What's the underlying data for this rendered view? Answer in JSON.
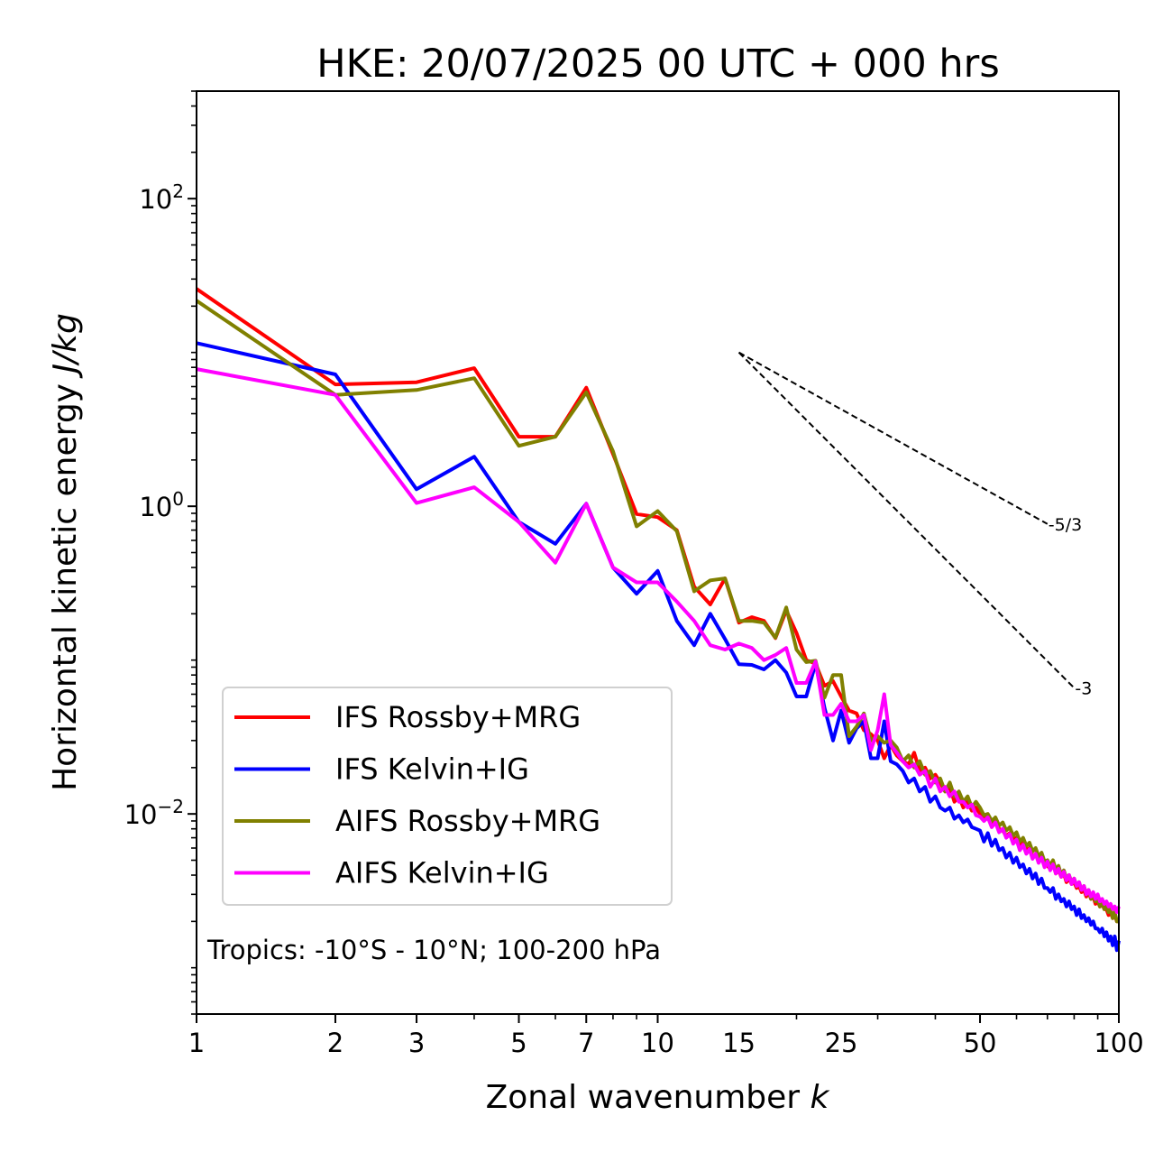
{
  "chart_data": {
    "type": "line",
    "title": "HKE: 20/07/2025 00 UTC + 000 hrs",
    "xlabel": "Zonal wavenumber",
    "xlabel_var": "k",
    "ylabel": "Horizontal kinetic energy",
    "ylabel_units": "J/kg",
    "xscale": "log",
    "yscale": "log",
    "xlim": [
      1,
      100
    ],
    "ylim": [
      0.0005,
      500
    ],
    "grid": false,
    "x_ticks": [
      {
        "value": 1,
        "label": "1"
      },
      {
        "value": 2,
        "label": "2"
      },
      {
        "value": 3,
        "label": "3"
      },
      {
        "value": 5,
        "label": "5"
      },
      {
        "value": 7,
        "label": "7"
      },
      {
        "value": 10,
        "label": "10"
      },
      {
        "value": 15,
        "label": "15"
      },
      {
        "value": 25,
        "label": "25"
      },
      {
        "value": 50,
        "label": "50"
      },
      {
        "value": 100,
        "label": "100"
      }
    ],
    "y_ticks": [
      {
        "value": 100,
        "base": "10",
        "exp": "2"
      },
      {
        "value": 1,
        "base": "10",
        "exp": "0"
      },
      {
        "value": 0.01,
        "base": "10",
        "exp": "−2"
      }
    ],
    "legend_position": "lower-left",
    "annotation": "Tropics: -10°S - 10°N; 100-200 hPa",
    "reference_lines": [
      {
        "slope": -1.6667,
        "label": "-5/3",
        "k_start": 15,
        "k_end": 70,
        "y_start": 10,
        "style": "dashed"
      },
      {
        "slope": -3,
        "label": "-3",
        "k_start": 15,
        "k_end": 80,
        "y_start": 10,
        "style": "dashed"
      }
    ],
    "series": [
      {
        "name": "IFS Rossby+MRG",
        "color": "#ff0000",
        "values": [
          25.9,
          6.2,
          6.4,
          7.9,
          2.83,
          2.83,
          5.9,
          2.19,
          0.89,
          0.85,
          0.7,
          0.3,
          0.23,
          0.34,
          0.175,
          0.19,
          0.18,
          0.139,
          0.21,
          0.15,
          0.1,
          0.095,
          0.068,
          0.073,
          0.058,
          0.047,
          0.045,
          0.035,
          0.033,
          0.03,
          0.023,
          0.028,
          0.024,
          0.022,
          0.021,
          0.025,
          0.019,
          0.02,
          0.017,
          0.018,
          0.016,
          0.014,
          0.015,
          0.012,
          0.013,
          0.011,
          0.012,
          0.0105,
          0.011,
          0.01,
          0.0092,
          0.0098,
          0.0085,
          0.009,
          0.008,
          0.0078,
          0.0072,
          0.0075,
          0.0068,
          0.007,
          0.0062,
          0.0066,
          0.0058,
          0.006,
          0.0052,
          0.0055,
          0.005,
          0.0053,
          0.0047,
          0.0046,
          0.0044,
          0.0048,
          0.0041,
          0.0043,
          0.0039,
          0.0041,
          0.0036,
          0.0038,
          0.0035,
          0.0036,
          0.0033,
          0.0034,
          0.0031,
          0.0032,
          0.0029,
          0.0031,
          0.0028,
          0.0029,
          0.0026,
          0.0027,
          0.0025,
          0.0026,
          0.0024,
          0.0024,
          0.0022,
          0.0023,
          0.0021,
          0.0022,
          0.002,
          0.002
        ]
      },
      {
        "name": "IFS Kelvin+IG",
        "color": "#0000ff",
        "values": [
          11.5,
          7.2,
          1.29,
          2.1,
          0.79,
          0.57,
          1.04,
          0.4,
          0.27,
          0.38,
          0.18,
          0.125,
          0.2,
          0.137,
          0.094,
          0.093,
          0.087,
          0.1,
          0.083,
          0.058,
          0.058,
          0.095,
          0.049,
          0.03,
          0.047,
          0.029,
          0.036,
          0.04,
          0.023,
          0.023,
          0.04,
          0.022,
          0.021,
          0.019,
          0.016,
          0.017,
          0.014,
          0.015,
          0.012,
          0.013,
          0.011,
          0.0105,
          0.011,
          0.0093,
          0.0098,
          0.0088,
          0.0092,
          0.0082,
          0.008,
          0.0078,
          0.0066,
          0.0075,
          0.0062,
          0.0068,
          0.0058,
          0.006,
          0.0052,
          0.0056,
          0.0048,
          0.0052,
          0.0045,
          0.0047,
          0.0041,
          0.0044,
          0.0038,
          0.0041,
          0.0035,
          0.0038,
          0.0033,
          0.0033,
          0.0031,
          0.0033,
          0.0028,
          0.003,
          0.0027,
          0.0028,
          0.0025,
          0.0027,
          0.0024,
          0.0025,
          0.0022,
          0.0024,
          0.0021,
          0.0022,
          0.002,
          0.0021,
          0.0019,
          0.002,
          0.0018,
          0.0018,
          0.0017,
          0.0018,
          0.0016,
          0.0017,
          0.0015,
          0.0016,
          0.0014,
          0.0016,
          0.0013,
          0.0015
        ]
      },
      {
        "name": "AIFS Rossby+MRG",
        "color": "#808000",
        "values": [
          21.7,
          5.3,
          5.7,
          6.8,
          2.47,
          2.83,
          5.5,
          2.28,
          0.74,
          0.93,
          0.69,
          0.28,
          0.33,
          0.34,
          0.18,
          0.18,
          0.175,
          0.14,
          0.22,
          0.117,
          0.097,
          0.099,
          0.057,
          0.08,
          0.08,
          0.032,
          0.037,
          0.045,
          0.03,
          0.032,
          0.029,
          0.03,
          0.027,
          0.022,
          0.024,
          0.02,
          0.022,
          0.018,
          0.019,
          0.016,
          0.017,
          0.014,
          0.016,
          0.013,
          0.014,
          0.012,
          0.013,
          0.011,
          0.012,
          0.011,
          0.0098,
          0.01,
          0.009,
          0.0095,
          0.0084,
          0.0088,
          0.0078,
          0.0082,
          0.0072,
          0.0076,
          0.0066,
          0.007,
          0.0062,
          0.0065,
          0.0057,
          0.006,
          0.0053,
          0.0056,
          0.0049,
          0.005,
          0.0046,
          0.005,
          0.0043,
          0.0046,
          0.004,
          0.0043,
          0.0038,
          0.004,
          0.0036,
          0.0038,
          0.0034,
          0.0036,
          0.0032,
          0.0034,
          0.003,
          0.0032,
          0.0028,
          0.003,
          0.0027,
          0.0028,
          0.0025,
          0.0027,
          0.0024,
          0.0025,
          0.0023,
          0.0024,
          0.0021,
          0.0023,
          0.002,
          0.002
        ]
      },
      {
        "name": "AIFS Kelvin+IG",
        "color": "#ff00ff",
        "values": [
          7.8,
          5.3,
          1.05,
          1.33,
          0.79,
          0.43,
          1.04,
          0.4,
          0.32,
          0.32,
          0.24,
          0.18,
          0.125,
          0.117,
          0.128,
          0.12,
          0.1,
          0.108,
          0.12,
          0.071,
          0.071,
          0.098,
          0.044,
          0.044,
          0.052,
          0.04,
          0.04,
          0.044,
          0.026,
          0.035,
          0.06,
          0.028,
          0.025,
          0.022,
          0.02,
          0.021,
          0.018,
          0.019,
          0.015,
          0.017,
          0.014,
          0.015,
          0.013,
          0.014,
          0.012,
          0.012,
          0.011,
          0.0115,
          0.0098,
          0.0096,
          0.009,
          0.0095,
          0.0082,
          0.0088,
          0.0076,
          0.008,
          0.007,
          0.0074,
          0.0064,
          0.0068,
          0.0058,
          0.0063,
          0.0055,
          0.0059,
          0.0051,
          0.0055,
          0.0048,
          0.0052,
          0.0045,
          0.0049,
          0.0043,
          0.0047,
          0.0041,
          0.0044,
          0.0039,
          0.0042,
          0.0037,
          0.004,
          0.0035,
          0.0038,
          0.0034,
          0.0036,
          0.0032,
          0.0034,
          0.003,
          0.0032,
          0.0029,
          0.0031,
          0.0028,
          0.003,
          0.0027,
          0.0028,
          0.0026,
          0.0027,
          0.0025,
          0.0026,
          0.0024,
          0.0025,
          0.0023,
          0.0025
        ]
      }
    ]
  }
}
